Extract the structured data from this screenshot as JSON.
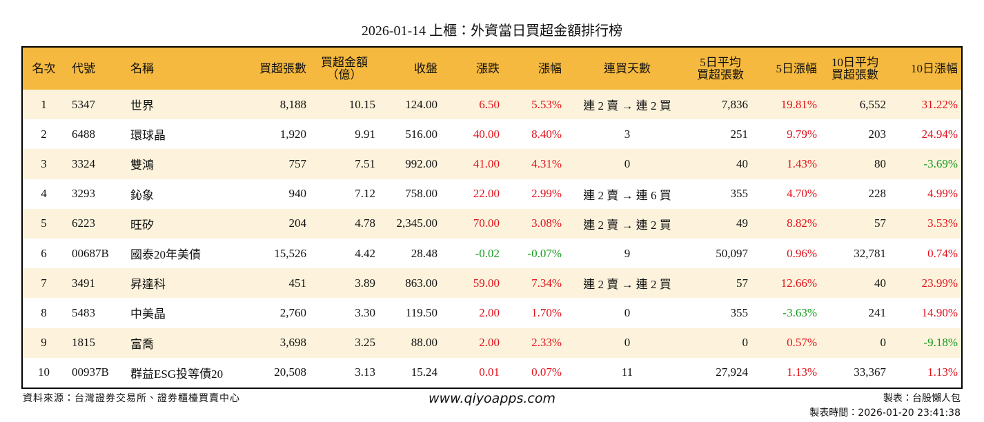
{
  "title": "2026-01-14 上櫃：外資當日買超金額排行榜",
  "table": {
    "headers": [
      "名次",
      "代號",
      "名稱",
      "買超張數",
      "買超金額\n（億）",
      "收盤",
      "漲跌",
      "漲幅",
      "連買天數",
      "5日平均\n買超張數",
      "5日漲幅",
      "10日平均\n買超張數",
      "10日漲幅"
    ],
    "rows": [
      [
        "1",
        "5347",
        "世界",
        "8,188",
        "10.15",
        "124.00",
        "6.50",
        "5.53%",
        "連 2 賣 → 連 2 買",
        "7,836",
        "19.81%",
        "6,552",
        "31.22%"
      ],
      [
        "2",
        "6488",
        "環球晶",
        "1,920",
        "9.91",
        "516.00",
        "40.00",
        "8.40%",
        "3",
        "251",
        "9.79%",
        "203",
        "24.94%"
      ],
      [
        "3",
        "3324",
        "雙鴻",
        "757",
        "7.51",
        "992.00",
        "41.00",
        "4.31%",
        "0",
        "40",
        "1.43%",
        "80",
        "-3.69%"
      ],
      [
        "4",
        "3293",
        "鈊象",
        "940",
        "7.12",
        "758.00",
        "22.00",
        "2.99%",
        "連 2 賣 → 連 6 買",
        "355",
        "4.70%",
        "228",
        "4.99%"
      ],
      [
        "5",
        "6223",
        "旺矽",
        "204",
        "4.78",
        "2,345.00",
        "70.00",
        "3.08%",
        "連 2 賣 → 連 2 買",
        "49",
        "8.82%",
        "57",
        "3.53%"
      ],
      [
        "6",
        "00687B",
        "國泰20年美債",
        "15,526",
        "4.42",
        "28.48",
        "-0.02",
        "-0.07%",
        "9",
        "50,097",
        "0.96%",
        "32,781",
        "0.74%"
      ],
      [
        "7",
        "3491",
        "昇達科",
        "451",
        "3.89",
        "863.00",
        "59.00",
        "7.34%",
        "連 2 賣 → 連 2 買",
        "57",
        "12.66%",
        "40",
        "23.99%"
      ],
      [
        "8",
        "5483",
        "中美晶",
        "2,760",
        "3.30",
        "119.50",
        "2.00",
        "1.70%",
        "0",
        "355",
        "-3.63%",
        "241",
        "14.90%"
      ],
      [
        "9",
        "1815",
        "富喬",
        "3,698",
        "3.25",
        "88.00",
        "2.00",
        "2.33%",
        "0",
        "0",
        "0.57%",
        "0",
        "-9.18%"
      ],
      [
        "10",
        "00937B",
        "群益ESG投等債20",
        "20,508",
        "3.13",
        "15.24",
        "0.01",
        "0.07%",
        "11",
        "27,924",
        "1.13%",
        "33,367",
        "1.13%"
      ]
    ]
  },
  "footer": {
    "source": "資料來源：台灣證券交易所、證券櫃檯買賣中心",
    "site": "www.qiyoapps.com",
    "author": "製表：台股懶人包",
    "time": "製表時間：2026-01-20 23:41:38"
  }
}
